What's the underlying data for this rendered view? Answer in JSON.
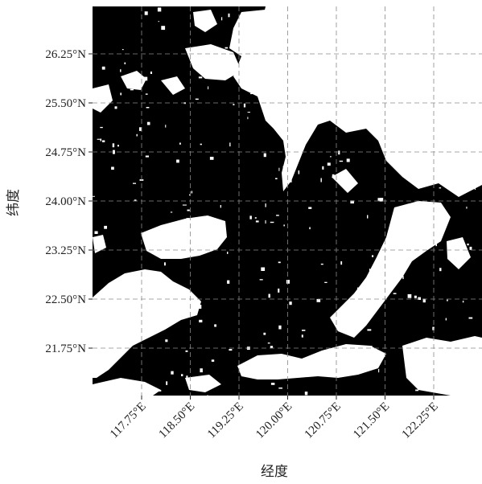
{
  "map": {
    "xlabel": "经度",
    "ylabel": "纬度",
    "lon_ticks": [
      "117.75°E",
      "118.50°E",
      "119.25°E",
      "120.00°E",
      "120.75°E",
      "121.50°E",
      "122.25°E"
    ],
    "lat_ticks": [
      "26.25°N",
      "25.50°N",
      "24.75°N",
      "24.00°N",
      "23.25°N",
      "22.50°N",
      "21.75°N"
    ],
    "lon_values": [
      117.75,
      118.5,
      119.25,
      120.0,
      120.75,
      121.5,
      122.25
    ],
    "lat_values": [
      26.25,
      25.5,
      24.75,
      24.0,
      23.25,
      22.5,
      21.75
    ],
    "grid": true,
    "colors": {
      "background": "#000000",
      "cloud": "#ffffff",
      "grid": "#8a8a8a"
    }
  }
}
